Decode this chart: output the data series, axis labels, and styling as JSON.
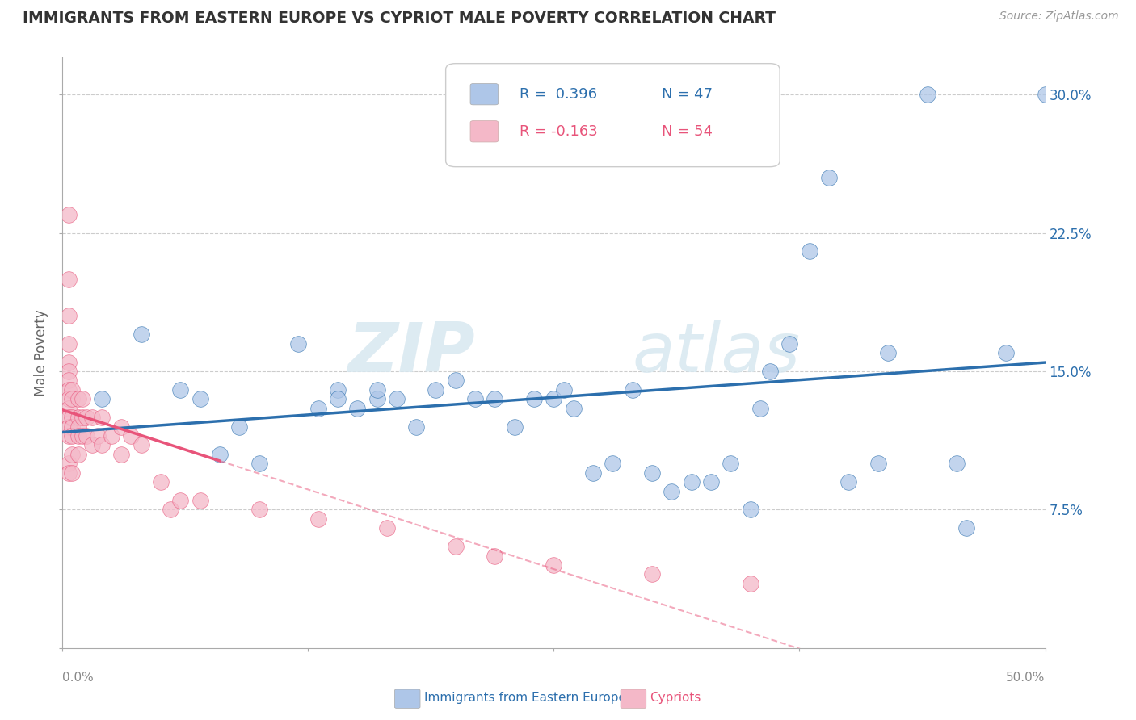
{
  "title": "IMMIGRANTS FROM EASTERN EUROPE VS CYPRIOT MALE POVERTY CORRELATION CHART",
  "source": "Source: ZipAtlas.com",
  "ylabel": "Male Poverty",
  "y_ticks": [
    0.0,
    0.075,
    0.15,
    0.225,
    0.3
  ],
  "x_min": 0.0,
  "x_max": 0.5,
  "y_min": 0.0,
  "y_max": 0.32,
  "legend_r1": "R =  0.396",
  "legend_n1": "N = 47",
  "legend_r2": "R = -0.163",
  "legend_n2": "N = 54",
  "blue_color": "#aec6e8",
  "blue_line_color": "#2c6fad",
  "pink_color": "#f4b8c8",
  "pink_line_color": "#e8547a",
  "watermark_zip": "ZIP",
  "watermark_atlas": "atlas",
  "blue_scatter_x": [
    0.02,
    0.04,
    0.06,
    0.07,
    0.08,
    0.09,
    0.1,
    0.12,
    0.13,
    0.14,
    0.14,
    0.15,
    0.16,
    0.16,
    0.17,
    0.18,
    0.19,
    0.2,
    0.21,
    0.22,
    0.23,
    0.24,
    0.25,
    0.255,
    0.26,
    0.27,
    0.28,
    0.29,
    0.3,
    0.31,
    0.32,
    0.33,
    0.34,
    0.35,
    0.355,
    0.36,
    0.37,
    0.38,
    0.39,
    0.4,
    0.415,
    0.42,
    0.44,
    0.455,
    0.46,
    0.48,
    0.5
  ],
  "blue_scatter_y": [
    0.135,
    0.17,
    0.14,
    0.135,
    0.105,
    0.12,
    0.1,
    0.165,
    0.13,
    0.14,
    0.135,
    0.13,
    0.135,
    0.14,
    0.135,
    0.12,
    0.14,
    0.145,
    0.135,
    0.135,
    0.12,
    0.135,
    0.135,
    0.14,
    0.13,
    0.095,
    0.1,
    0.14,
    0.095,
    0.085,
    0.09,
    0.09,
    0.1,
    0.075,
    0.13,
    0.15,
    0.165,
    0.215,
    0.255,
    0.09,
    0.1,
    0.16,
    0.3,
    0.1,
    0.065,
    0.16,
    0.3
  ],
  "pink_scatter_x": [
    0.003,
    0.003,
    0.003,
    0.003,
    0.003,
    0.003,
    0.003,
    0.003,
    0.003,
    0.003,
    0.003,
    0.003,
    0.003,
    0.003,
    0.003,
    0.005,
    0.005,
    0.005,
    0.005,
    0.005,
    0.005,
    0.005,
    0.008,
    0.008,
    0.008,
    0.008,
    0.008,
    0.01,
    0.01,
    0.01,
    0.012,
    0.012,
    0.015,
    0.015,
    0.018,
    0.02,
    0.02,
    0.025,
    0.03,
    0.03,
    0.035,
    0.04,
    0.05,
    0.055,
    0.06,
    0.07,
    0.1,
    0.13,
    0.165,
    0.2,
    0.22,
    0.25,
    0.3,
    0.35
  ],
  "pink_scatter_y": [
    0.235,
    0.2,
    0.18,
    0.165,
    0.155,
    0.15,
    0.145,
    0.14,
    0.135,
    0.13,
    0.125,
    0.12,
    0.115,
    0.1,
    0.095,
    0.14,
    0.135,
    0.125,
    0.12,
    0.115,
    0.105,
    0.095,
    0.135,
    0.125,
    0.12,
    0.115,
    0.105,
    0.135,
    0.125,
    0.115,
    0.125,
    0.115,
    0.125,
    0.11,
    0.115,
    0.125,
    0.11,
    0.115,
    0.12,
    0.105,
    0.115,
    0.11,
    0.09,
    0.075,
    0.08,
    0.08,
    0.075,
    0.07,
    0.065,
    0.055,
    0.05,
    0.045,
    0.04,
    0.035
  ]
}
